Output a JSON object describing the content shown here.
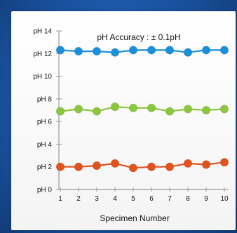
{
  "chart_data": {
    "type": "line",
    "title": "pH Accuracy : ± 0.1pH",
    "xlabel": "Specimen Number",
    "ylabel": "",
    "x": [
      1,
      2,
      3,
      4,
      5,
      6,
      7,
      8,
      9,
      10
    ],
    "x_tick_labels": [
      "1",
      "2",
      "3",
      "4",
      "5",
      "6",
      "7",
      "8",
      "9",
      "10"
    ],
    "y_ticks": [
      0,
      2,
      4,
      6,
      8,
      10,
      12,
      14
    ],
    "y_tick_labels": [
      "pH 0",
      "pH 2",
      "pH 4",
      "pH 6",
      "pH 8",
      "pH 10",
      "pH 12",
      "pH 14"
    ],
    "ylim": [
      0,
      14
    ],
    "grid": false,
    "legend": "none",
    "series": [
      {
        "color": "#1b8fd8",
        "values": [
          12.3,
          12.2,
          12.2,
          12.1,
          12.3,
          12.3,
          12.3,
          12.1,
          12.3,
          12.3
        ]
      },
      {
        "color": "#8cc63f",
        "values": [
          6.9,
          7.1,
          6.9,
          7.3,
          7.2,
          7.2,
          6.9,
          7.1,
          7.0,
          7.1
        ]
      },
      {
        "color": "#e0531f",
        "values": [
          2.0,
          2.0,
          2.1,
          2.3,
          1.9,
          2.0,
          2.0,
          2.3,
          2.2,
          2.4
        ]
      }
    ]
  }
}
